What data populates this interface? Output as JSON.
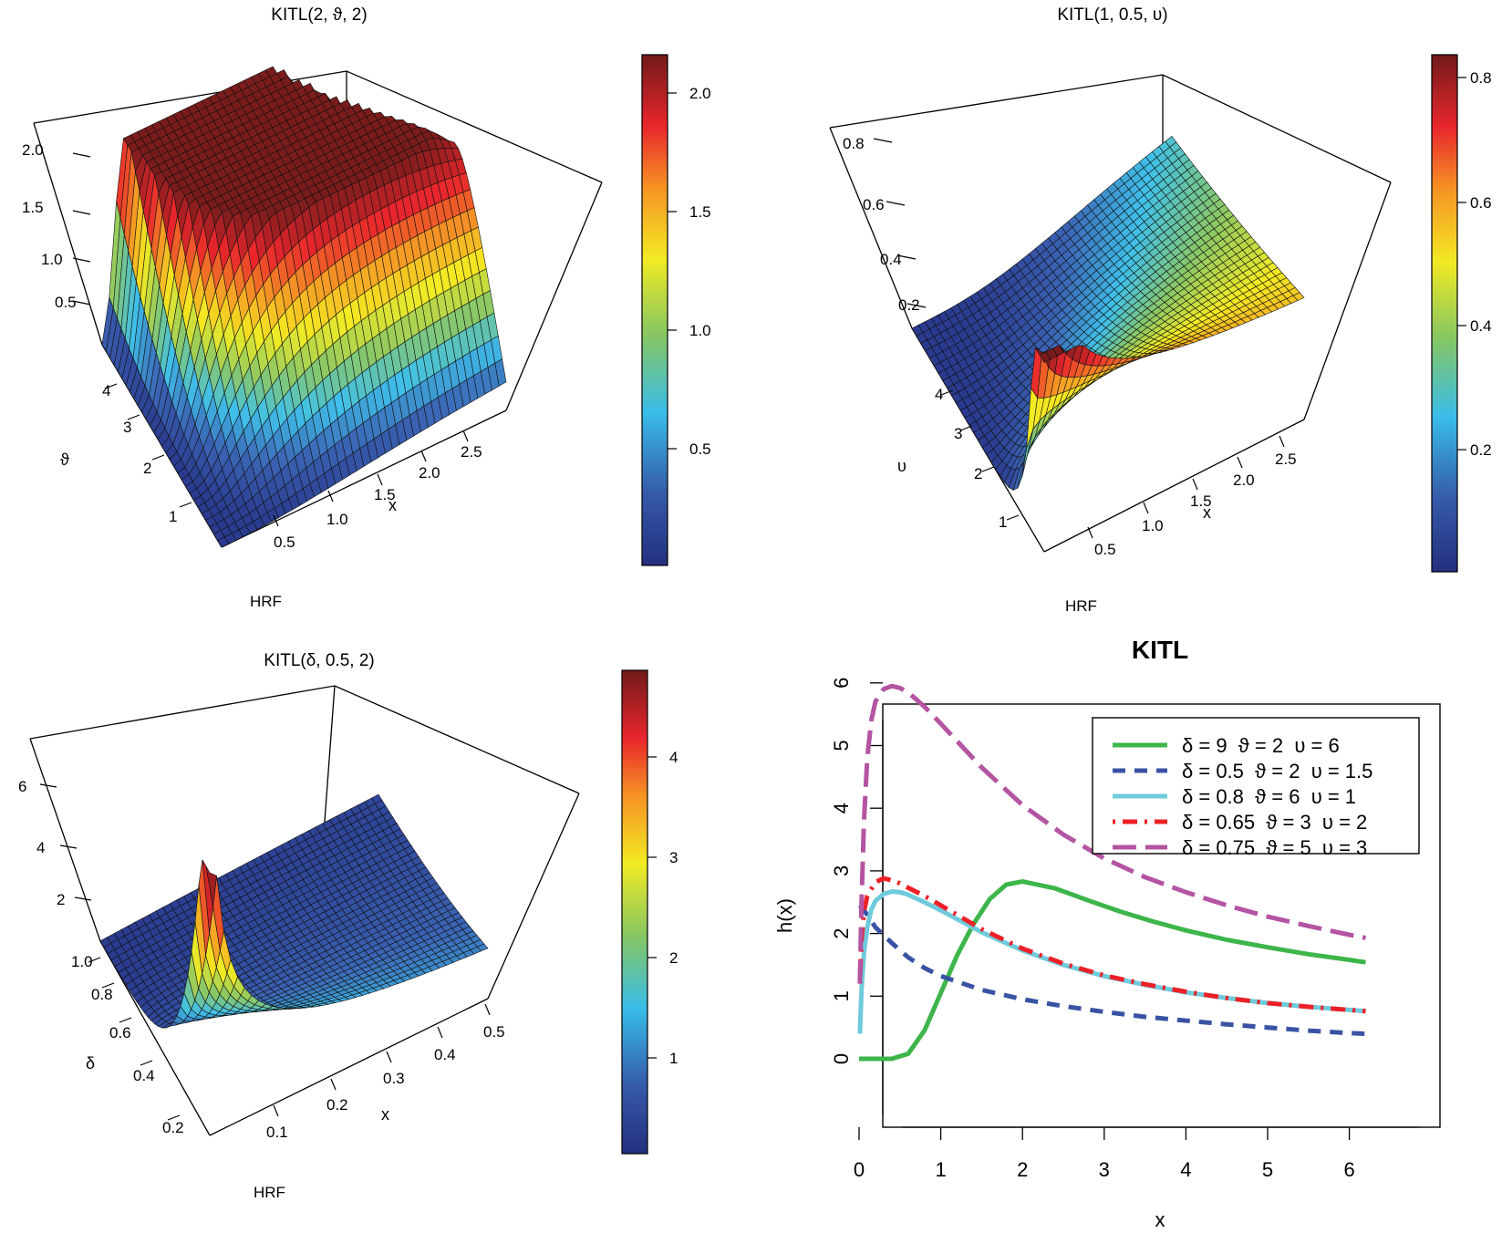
{
  "colors": {
    "surface_gradient": [
      "#2a3a8e",
      "#3b64b4",
      "#3fc0ea",
      "#8cc864",
      "#f4ec22",
      "#f59a24",
      "#e9262c",
      "#7a1c1c"
    ],
    "series": [
      "#3db54a",
      "#3953a4",
      "#6fcbdc",
      "#ec2027",
      "#b454a2"
    ]
  },
  "chart_data": [
    {
      "type": "surface3d",
      "title": "KITL(2, ϑ, 2)",
      "xlabel": "x",
      "ylabel": "ϑ",
      "zlabel": "HRF",
      "x_ticks": [
        "0.5",
        "1.0",
        "1.5",
        "2.0",
        "2.5"
      ],
      "y_ticks": [
        "1",
        "2",
        "3",
        "4"
      ],
      "z_ticks": [
        "0.5",
        "1.0",
        "1.5",
        "2.0"
      ],
      "colorbar": {
        "ticks": [
          "0.5",
          "1.0",
          "1.5",
          "2.0"
        ],
        "range": [
          0,
          2.15
        ]
      },
      "x_range": [
        0.01,
        2.8
      ],
      "y_range": [
        0.5,
        5
      ],
      "z_range": [
        0,
        2.2
      ],
      "peak_value": 2.15
    },
    {
      "type": "surface3d",
      "title": "KITL(1, 0.5, υ)",
      "xlabel": "x",
      "ylabel": "υ",
      "zlabel": "HRF",
      "x_ticks": [
        "0.5",
        "1.0",
        "1.5",
        "2.0",
        "2.5"
      ],
      "y_ticks": [
        "1",
        "2",
        "3",
        "4"
      ],
      "z_ticks": [
        "0.2",
        "0.4",
        "0.6",
        "0.8"
      ],
      "colorbar": {
        "ticks": [
          "0.2",
          "0.4",
          "0.6",
          "0.8"
        ],
        "range": [
          0,
          0.83
        ]
      },
      "x_range": [
        0.01,
        2.8
      ],
      "y_range": [
        0.5,
        5
      ],
      "z_range": [
        0,
        0.88
      ],
      "peak_value": 0.83
    },
    {
      "type": "surface3d",
      "title": "KITL(δ, 0.5, 2)",
      "xlabel": "x",
      "ylabel": "δ",
      "zlabel": "HRF",
      "x_ticks": [
        "0.1",
        "0.2",
        "0.3",
        "0.4",
        "0.5"
      ],
      "y_ticks": [
        "0.2",
        "0.4",
        "0.6",
        "0.8",
        "1.0"
      ],
      "z_ticks": [
        "2",
        "4",
        "6"
      ],
      "colorbar": {
        "ticks": [
          "1",
          "2",
          "3",
          "4"
        ],
        "range": [
          0,
          4.8
        ]
      },
      "x_range": [
        0.01,
        0.5
      ],
      "y_range": [
        0.15,
        1.0
      ],
      "z_range": [
        0,
        7
      ],
      "peak_value": 4.8
    },
    {
      "type": "line",
      "title": "KITL",
      "xlabel": "x",
      "ylabel": "h(x)",
      "xlim": [
        0,
        6.2
      ],
      "ylim": [
        0,
        6
      ],
      "x_ticks": [
        "0",
        "1",
        "2",
        "3",
        "4",
        "5",
        "6"
      ],
      "y_ticks": [
        "0",
        "1",
        "2",
        "3",
        "4",
        "5",
        "6"
      ],
      "legend_position": "top-right",
      "series": [
        {
          "name": "δ = 9  ϑ = 2  υ = 6",
          "style": "solid",
          "x": [
            0,
            0.2,
            0.4,
            0.6,
            0.8,
            1.0,
            1.2,
            1.4,
            1.6,
            1.8,
            2.0,
            2.4,
            2.8,
            3.2,
            3.6,
            4.0,
            4.5,
            5.0,
            5.5,
            6.0,
            6.2
          ],
          "values": [
            0,
            0,
            0,
            0.08,
            0.45,
            1.05,
            1.65,
            2.15,
            2.55,
            2.78,
            2.83,
            2.72,
            2.53,
            2.35,
            2.19,
            2.05,
            1.9,
            1.78,
            1.67,
            1.58,
            1.54
          ]
        },
        {
          "name": "δ = 0.5  ϑ = 2  υ = 1.5",
          "style": "dashed",
          "x": [
            0.01,
            0.1,
            0.2,
            0.4,
            0.6,
            0.8,
            1.0,
            1.5,
            2.0,
            2.5,
            3.0,
            3.5,
            4.0,
            4.5,
            5.0,
            5.5,
            6.0,
            6.2
          ],
          "values": [
            2.45,
            2.3,
            2.1,
            1.85,
            1.62,
            1.45,
            1.32,
            1.1,
            0.95,
            0.84,
            0.75,
            0.67,
            0.61,
            0.55,
            0.5,
            0.45,
            0.41,
            0.4
          ]
        },
        {
          "name": "δ = 0.8  ϑ = 6  υ = 1",
          "style": "solid",
          "x": [
            0.01,
            0.03,
            0.06,
            0.1,
            0.15,
            0.2,
            0.3,
            0.4,
            0.5,
            0.6,
            0.8,
            1.0,
            1.5,
            2.0,
            2.5,
            3.0,
            3.5,
            4.0,
            4.5,
            5.0,
            5.5,
            6.0,
            6.2
          ],
          "values": [
            0.4,
            1.1,
            1.7,
            2.1,
            2.38,
            2.52,
            2.63,
            2.67,
            2.66,
            2.62,
            2.5,
            2.37,
            2.02,
            1.73,
            1.5,
            1.32,
            1.18,
            1.06,
            0.97,
            0.89,
            0.83,
            0.78,
            0.76
          ]
        },
        {
          "name": "δ = 0.65  ϑ = 3  υ = 2",
          "style": "dotdash",
          "x": [
            0.01,
            0.03,
            0.06,
            0.1,
            0.2,
            0.3,
            0.4,
            0.5,
            0.6,
            0.8,
            1.0,
            1.5,
            2.0,
            2.5,
            3.0,
            3.5,
            4.0,
            4.5,
            5.0,
            5.5,
            6.0,
            6.2
          ],
          "values": [
            1.2,
            1.9,
            2.35,
            2.6,
            2.82,
            2.88,
            2.85,
            2.8,
            2.73,
            2.6,
            2.45,
            2.07,
            1.76,
            1.52,
            1.33,
            1.19,
            1.07,
            0.97,
            0.89,
            0.83,
            0.78,
            0.76
          ]
        },
        {
          "name": "δ = 0.75  ϑ = 5  υ = 3",
          "style": "longdash",
          "x": [
            0.01,
            0.03,
            0.06,
            0.1,
            0.15,
            0.2,
            0.3,
            0.4,
            0.5,
            0.6,
            0.8,
            1.0,
            1.5,
            2.0,
            2.5,
            3.0,
            3.5,
            4.0,
            4.5,
            5.0,
            5.5,
            6.0,
            6.2
          ],
          "values": [
            1.2,
            2.5,
            3.8,
            4.8,
            5.4,
            5.7,
            5.9,
            5.95,
            5.92,
            5.85,
            5.62,
            5.35,
            4.65,
            4.05,
            3.58,
            3.2,
            2.9,
            2.66,
            2.45,
            2.27,
            2.12,
            1.98,
            1.93
          ]
        }
      ]
    }
  ]
}
